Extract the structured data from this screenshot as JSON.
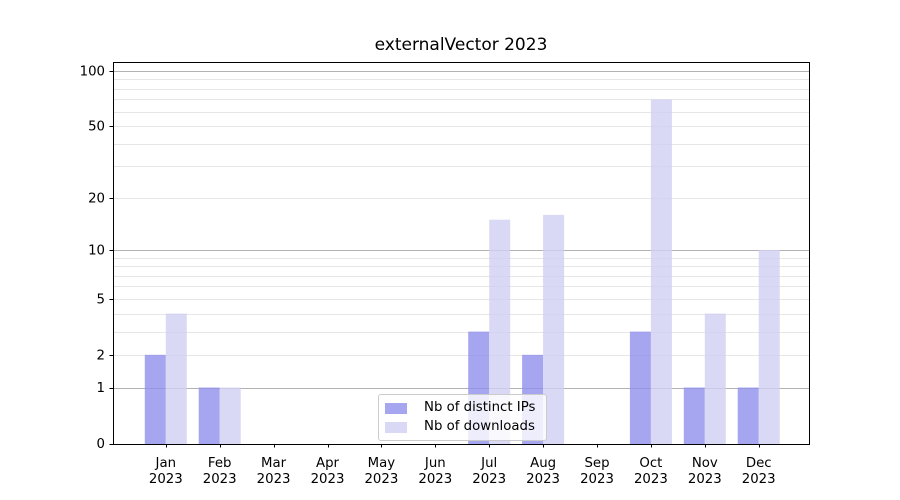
{
  "chart_data": {
    "type": "bar",
    "title": "externalVector 2023",
    "categories": [
      "Jan 2023",
      "Feb 2023",
      "Mar 2023",
      "Apr 2023",
      "May 2023",
      "Jun 2023",
      "Jul 2023",
      "Aug 2023",
      "Sep 2023",
      "Oct 2023",
      "Nov 2023",
      "Dec 2023"
    ],
    "series": [
      {
        "name": "Nb of distinct IPs",
        "color": "#8f8fec",
        "values": [
          2,
          1,
          0,
          0,
          0,
          0,
          3,
          2,
          0,
          3,
          1,
          1
        ]
      },
      {
        "name": "Nb of downloads",
        "color": "#cfcff3",
        "values": [
          4,
          1,
          0,
          0,
          0,
          0,
          15,
          16,
          0,
          70,
          4,
          10
        ]
      }
    ],
    "y_axis": {
      "scale": "log1p",
      "tick_labels": [
        0,
        1,
        2,
        5,
        10,
        20,
        50,
        100
      ],
      "major_gridlines": [
        1,
        10,
        100
      ],
      "minor_gridlines": [
        2,
        3,
        4,
        5,
        6,
        7,
        8,
        9,
        20,
        30,
        40,
        50,
        60,
        70,
        80,
        90
      ],
      "ylim": [
        0,
        112
      ]
    },
    "xlabel": "",
    "ylabel": "",
    "grid": true,
    "legend_position": "lower center inside"
  },
  "colors": {
    "bar_distinct_ips": "#8f8fec",
    "bar_downloads": "#cfcff3",
    "grid_major": "#b2b2b2",
    "grid_minor": "#e6e6e6",
    "axis": "#000000",
    "background": "#ffffff"
  }
}
